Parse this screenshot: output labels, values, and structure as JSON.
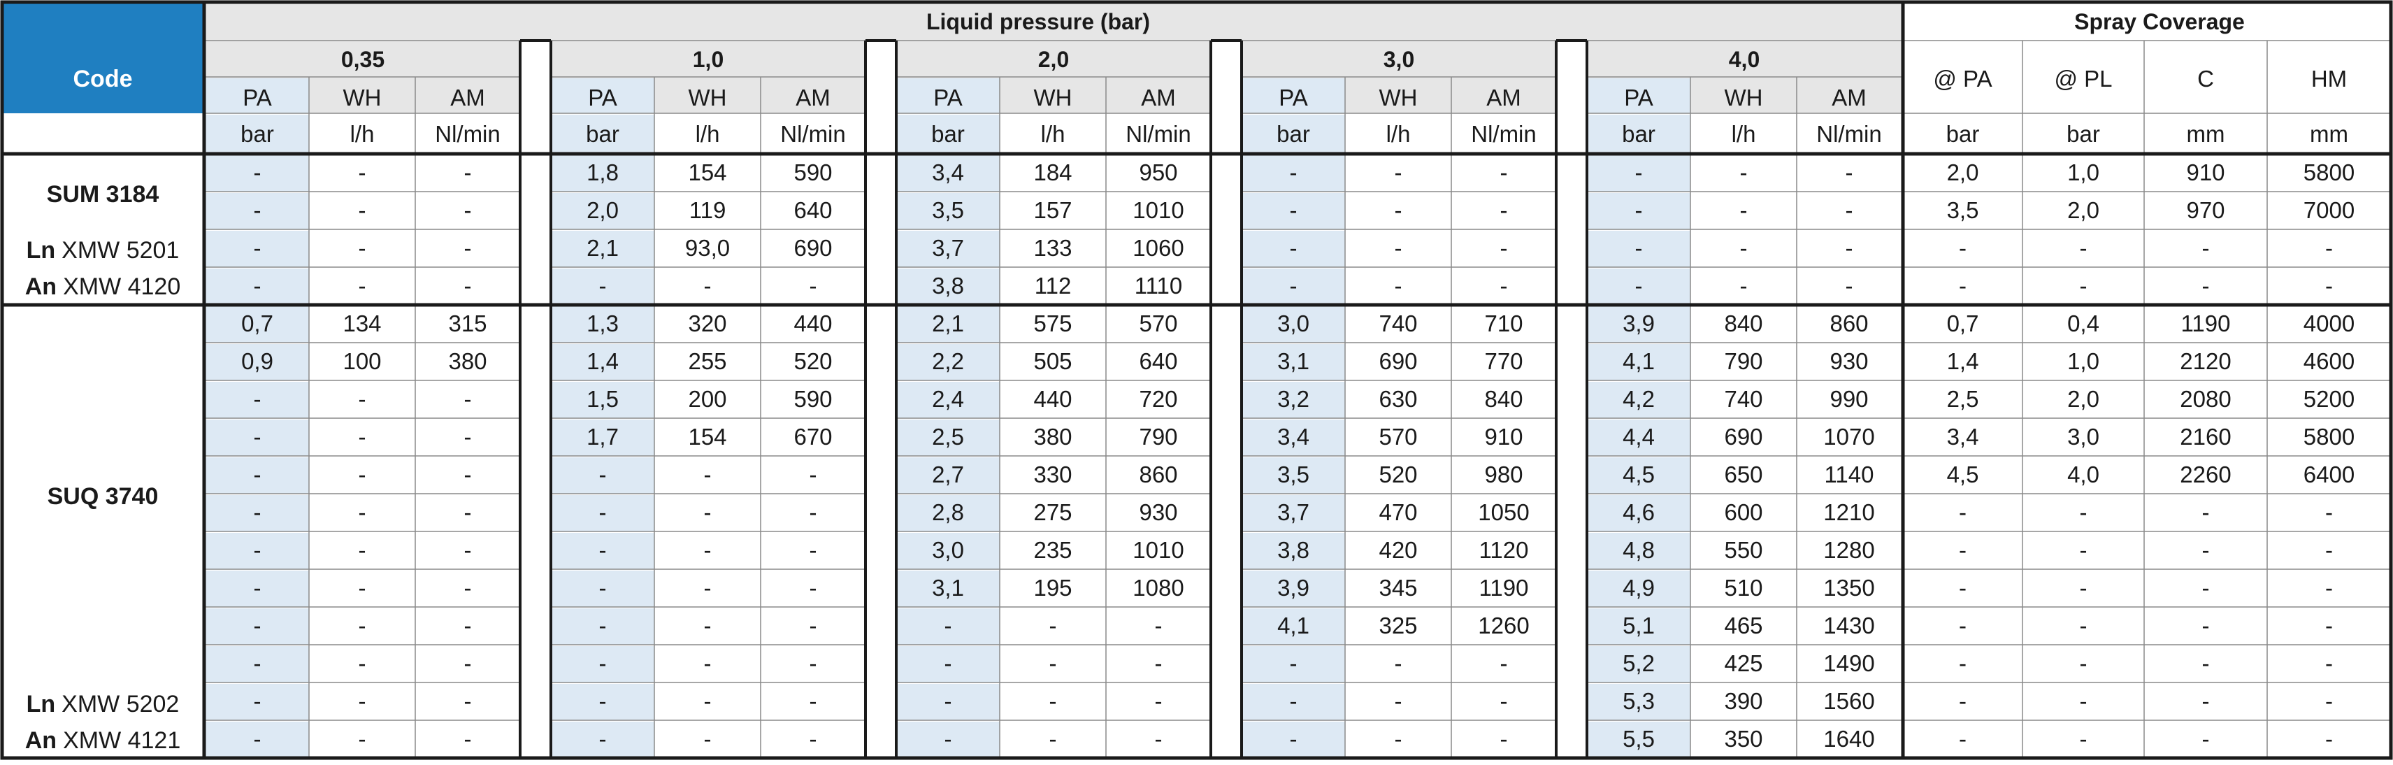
{
  "header": {
    "code_label": "Code",
    "liquid_pressure_label": "Liquid pressure (bar)",
    "spray_coverage_label": "Spray Coverage",
    "pressure_groups": [
      "0,35",
      "1,0",
      "2,0",
      "3,0",
      "4,0"
    ],
    "sub_labels": [
      "PA",
      "WH",
      "AM"
    ],
    "unit_labels": [
      "bar",
      "l/h",
      "Nl/min"
    ],
    "coverage_labels": [
      "@ PA",
      "@ PL",
      "C",
      "HM"
    ],
    "coverage_units": [
      "bar",
      "bar",
      "mm",
      "mm"
    ]
  },
  "code_labels": {
    "sum_main": "SUM 3184",
    "sum_ln_prefix": "Ln",
    "sum_ln_code": "XMW 5201",
    "sum_an_prefix": "An",
    "sum_an_code": "XMW 4120",
    "suq_main": "SUQ 3740",
    "suq_ln_prefix": "Ln",
    "suq_ln_code": "XMW 5202",
    "suq_an_prefix": "An",
    "suq_an_code": "XMW 4121"
  },
  "rows": [
    [
      [
        "-",
        "-",
        "-"
      ],
      [
        "1,8",
        "154",
        "590"
      ],
      [
        "3,4",
        "184",
        "950"
      ],
      [
        "-",
        "-",
        "-"
      ],
      [
        "-",
        "-",
        "-"
      ],
      [
        "2,0",
        "1,0",
        "910",
        "5800"
      ]
    ],
    [
      [
        "-",
        "-",
        "-"
      ],
      [
        "2,0",
        "119",
        "640"
      ],
      [
        "3,5",
        "157",
        "1010"
      ],
      [
        "-",
        "-",
        "-"
      ],
      [
        "-",
        "-",
        "-"
      ],
      [
        "3,5",
        "2,0",
        "970",
        "7000"
      ]
    ],
    [
      [
        "-",
        "-",
        "-"
      ],
      [
        "2,1",
        "93,0",
        "690"
      ],
      [
        "3,7",
        "133",
        "1060"
      ],
      [
        "-",
        "-",
        "-"
      ],
      [
        "-",
        "-",
        "-"
      ],
      [
        "-",
        "-",
        "-",
        "-"
      ]
    ],
    [
      [
        "-",
        "-",
        "-"
      ],
      [
        "-",
        "-",
        "-"
      ],
      [
        "3,8",
        "112",
        "1110"
      ],
      [
        "-",
        "-",
        "-"
      ],
      [
        "-",
        "-",
        "-"
      ],
      [
        "-",
        "-",
        "-",
        "-"
      ]
    ],
    [
      [
        "0,7",
        "134",
        "315"
      ],
      [
        "1,3",
        "320",
        "440"
      ],
      [
        "2,1",
        "575",
        "570"
      ],
      [
        "3,0",
        "740",
        "710"
      ],
      [
        "3,9",
        "840",
        "860"
      ],
      [
        "0,7",
        "0,4",
        "1190",
        "4000"
      ]
    ],
    [
      [
        "0,9",
        "100",
        "380"
      ],
      [
        "1,4",
        "255",
        "520"
      ],
      [
        "2,2",
        "505",
        "640"
      ],
      [
        "3,1",
        "690",
        "770"
      ],
      [
        "4,1",
        "790",
        "930"
      ],
      [
        "1,4",
        "1,0",
        "2120",
        "4600"
      ]
    ],
    [
      [
        "-",
        "-",
        "-"
      ],
      [
        "1,5",
        "200",
        "590"
      ],
      [
        "2,4",
        "440",
        "720"
      ],
      [
        "3,2",
        "630",
        "840"
      ],
      [
        "4,2",
        "740",
        "990"
      ],
      [
        "2,5",
        "2,0",
        "2080",
        "5200"
      ]
    ],
    [
      [
        "-",
        "-",
        "-"
      ],
      [
        "1,7",
        "154",
        "670"
      ],
      [
        "2,5",
        "380",
        "790"
      ],
      [
        "3,4",
        "570",
        "910"
      ],
      [
        "4,4",
        "690",
        "1070"
      ],
      [
        "3,4",
        "3,0",
        "2160",
        "5800"
      ]
    ],
    [
      [
        "-",
        "-",
        "-"
      ],
      [
        "-",
        "-",
        "-"
      ],
      [
        "2,7",
        "330",
        "860"
      ],
      [
        "3,5",
        "520",
        "980"
      ],
      [
        "4,5",
        "650",
        "1140"
      ],
      [
        "4,5",
        "4,0",
        "2260",
        "6400"
      ]
    ],
    [
      [
        "-",
        "-",
        "-"
      ],
      [
        "-",
        "-",
        "-"
      ],
      [
        "2,8",
        "275",
        "930"
      ],
      [
        "3,7",
        "470",
        "1050"
      ],
      [
        "4,6",
        "600",
        "1210"
      ],
      [
        "-",
        "-",
        "-",
        "-"
      ]
    ],
    [
      [
        "-",
        "-",
        "-"
      ],
      [
        "-",
        "-",
        "-"
      ],
      [
        "3,0",
        "235",
        "1010"
      ],
      [
        "3,8",
        "420",
        "1120"
      ],
      [
        "4,8",
        "550",
        "1280"
      ],
      [
        "-",
        "-",
        "-",
        "-"
      ]
    ],
    [
      [
        "-",
        "-",
        "-"
      ],
      [
        "-",
        "-",
        "-"
      ],
      [
        "3,1",
        "195",
        "1080"
      ],
      [
        "3,9",
        "345",
        "1190"
      ],
      [
        "4,9",
        "510",
        "1350"
      ],
      [
        "-",
        "-",
        "-",
        "-"
      ]
    ],
    [
      [
        "-",
        "-",
        "-"
      ],
      [
        "-",
        "-",
        "-"
      ],
      [
        "-",
        "-",
        "-"
      ],
      [
        "4,1",
        "325",
        "1260"
      ],
      [
        "5,1",
        "465",
        "1430"
      ],
      [
        "-",
        "-",
        "-",
        "-"
      ]
    ],
    [
      [
        "-",
        "-",
        "-"
      ],
      [
        "-",
        "-",
        "-"
      ],
      [
        "-",
        "-",
        "-"
      ],
      [
        "-",
        "-",
        "-"
      ],
      [
        "5,2",
        "425",
        "1490"
      ],
      [
        "-",
        "-",
        "-",
        "-"
      ]
    ],
    [
      [
        "-",
        "-",
        "-"
      ],
      [
        "-",
        "-",
        "-"
      ],
      [
        "-",
        "-",
        "-"
      ],
      [
        "-",
        "-",
        "-"
      ],
      [
        "5,3",
        "390",
        "1560"
      ],
      [
        "-",
        "-",
        "-",
        "-"
      ]
    ],
    [
      [
        "-",
        "-",
        "-"
      ],
      [
        "-",
        "-",
        "-"
      ],
      [
        "-",
        "-",
        "-"
      ],
      [
        "-",
        "-",
        "-"
      ],
      [
        "5,5",
        "350",
        "1640"
      ],
      [
        "-",
        "-",
        "-",
        "-"
      ]
    ]
  ],
  "colors": {
    "code_header_bg": "#1f7fc1",
    "header_bg": "#e6e6e6",
    "pa_bg": "#dde9f4",
    "line": "#1a1a1a",
    "grid": "#8a8a8a",
    "text": "#1a1a1a"
  }
}
